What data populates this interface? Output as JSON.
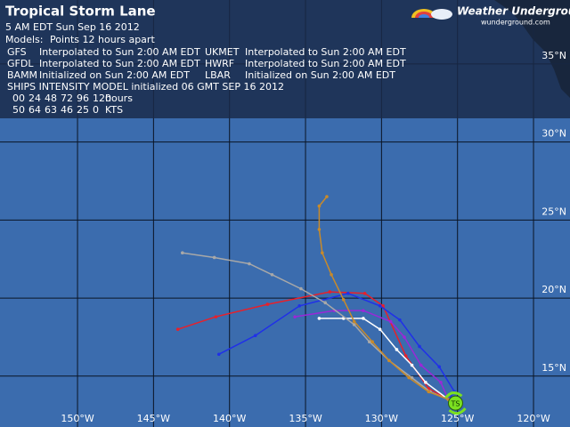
{
  "header": {
    "title": "Tropical Storm Lane",
    "issued": "5 AM EDT Sun Sep 16 2012",
    "models_label": "Models:",
    "models_note": "Points 12 hours apart",
    "logo": "Weather Underground®",
    "logo_url": "wunderground.com"
  },
  "ships": {
    "title": "SHIPS INTENSITY MODEL initialized 06 GMT SEP 16 2012",
    "hours": [
      "00",
      "24",
      "48",
      "72",
      "96",
      "120"
    ],
    "hours_label": "hours",
    "kts": [
      50,
      64,
      63,
      46,
      25,
      0
    ],
    "kts_label": "KTS"
  },
  "storm_icon": "TS",
  "map": {
    "xlim": [
      -155.1,
      -117.6
    ],
    "ylim": [
      11.74,
      39.1
    ],
    "xticks": [
      {
        "value": -150,
        "label": "150°W"
      },
      {
        "value": -145,
        "label": "145°W"
      },
      {
        "value": -140,
        "label": "140°W"
      },
      {
        "value": -135,
        "label": "135°W"
      },
      {
        "value": -130,
        "label": "130°W"
      },
      {
        "value": -125,
        "label": "125°W"
      },
      {
        "value": -120,
        "label": "120°W"
      }
    ],
    "yticks": [
      {
        "value": 15,
        "label": "15°N"
      },
      {
        "value": 20,
        "label": "20°N"
      },
      {
        "value": 25,
        "label": "25°N"
      },
      {
        "value": 30,
        "label": "30°N"
      },
      {
        "value": 35,
        "label": "35°N"
      }
    ],
    "tracks": [
      {
        "name": "GFS",
        "status": "Interpolated to Sun 2:00 AM EDT",
        "color": "#e8202a",
        "lon": [
          -125.6,
          -126.9,
          -128.4,
          -129.9,
          -131.1,
          -133.4,
          -137.5,
          -140.9,
          -143.4
        ],
        "lat": [
          13.5,
          14.2,
          16.3,
          19.5,
          20.3,
          20.4,
          19.6,
          18.8,
          18.0
        ]
      },
      {
        "name": "UKMET",
        "status": "Interpolated to Sun 2:00 AM EDT",
        "color": "#ffffff",
        "lon": [
          -125.6,
          -127.1,
          -128.0,
          -129.0,
          -130.1,
          -131.2,
          -132.5,
          -134.1
        ],
        "lat": [
          13.5,
          14.6,
          15.7,
          16.7,
          18.0,
          18.7,
          18.7,
          18.7
        ]
      },
      {
        "name": "GFDL",
        "status": "Interpolated to Sun 2:00 AM EDT",
        "color": "#2030e8",
        "lon": [
          -125.6,
          -125.2,
          -126.2,
          -127.5,
          -128.8,
          -130.1,
          -132.2,
          -135.4,
          -138.3,
          -140.7
        ],
        "lat": [
          13.5,
          14.0,
          15.6,
          16.9,
          18.6,
          19.5,
          20.3,
          19.5,
          17.6,
          16.4
        ]
      },
      {
        "name": "HWRF",
        "status": "Interpolated to Sun 2:00 AM EDT",
        "color": "#9a28d8",
        "lon": [
          -125.6,
          -126.1,
          -127.4,
          -128.5,
          -129.4,
          -131.2,
          -133.1,
          -135.7
        ],
        "lat": [
          13.5,
          14.6,
          15.7,
          17.5,
          18.5,
          19.2,
          19.2,
          18.8
        ]
      },
      {
        "name": "BAMM",
        "status": "Initialized on Sun 2:00 AM EDT",
        "color": "#a8a8a8",
        "lon": [
          -125.6,
          -126.8,
          -128.0,
          -129.5,
          -130.8,
          -131.8,
          -133.7,
          -135.3,
          -137.2,
          -138.7,
          -141.0,
          -143.1
        ],
        "lat": [
          13.5,
          14.0,
          14.9,
          16.0,
          17.2,
          18.3,
          19.7,
          20.6,
          21.5,
          22.2,
          22.6,
          22.9
        ]
      },
      {
        "name": "LBAR",
        "status": "Initialized on Sun 2:00 AM EDT",
        "color": "#c88a2a",
        "lon": [
          -125.6,
          -126.9,
          -128.2,
          -129.5,
          -130.6,
          -131.8,
          -132.5,
          -133.3,
          -133.9,
          -134.1,
          -134.1,
          -133.6
        ],
        "lat": [
          13.5,
          14.0,
          14.9,
          16.0,
          17.2,
          18.5,
          19.9,
          21.5,
          22.9,
          24.4,
          25.9,
          26.5
        ]
      }
    ]
  }
}
